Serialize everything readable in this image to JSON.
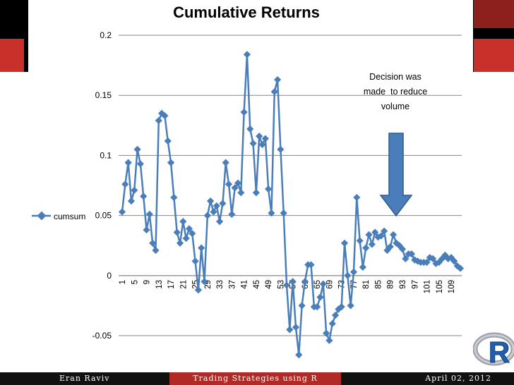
{
  "chart_data": {
    "type": "line",
    "title": "Cumulative Returns",
    "series": [
      {
        "name": "cumsum",
        "color": "#4a7ebb",
        "values": [
          0.053,
          0.076,
          0.094,
          0.062,
          0.071,
          0.105,
          0.093,
          0.066,
          0.038,
          0.051,
          0.027,
          0.021,
          0.129,
          0.135,
          0.133,
          0.112,
          0.094,
          0.065,
          0.036,
          0.027,
          0.045,
          0.031,
          0.039,
          0.035,
          0.012,
          -0.012,
          0.023,
          -0.005,
          0.05,
          0.062,
          0.053,
          0.058,
          0.045,
          0.06,
          0.094,
          0.076,
          0.051,
          0.073,
          0.077,
          0.069,
          0.136,
          0.184,
          0.122,
          0.11,
          0.069,
          0.116,
          0.109,
          0.114,
          0.072,
          0.052,
          0.153,
          0.163,
          0.105,
          0.052,
          -0.008,
          -0.045,
          -0.005,
          -0.043,
          -0.066,
          -0.025,
          -0.005,
          0.009,
          0.009,
          -0.026,
          -0.026,
          -0.018,
          -0.007,
          -0.048,
          -0.054,
          -0.04,
          -0.033,
          -0.028,
          -0.026,
          0.027,
          0.0,
          -0.025,
          0.003,
          0.065,
          0.029,
          0.007,
          0.023,
          0.034,
          0.026,
          0.036,
          0.032,
          0.033,
          0.037,
          0.021,
          0.024,
          0.034,
          0.027,
          0.025,
          0.022,
          0.014,
          0.018,
          0.018,
          0.013,
          0.012,
          0.011,
          0.011,
          0.011,
          0.015,
          0.014,
          0.01,
          0.011,
          0.014,
          0.017,
          0.014,
          0.015,
          0.012,
          0.008,
          0.006
        ]
      }
    ],
    "x_tick_labels": [
      "1",
      "5",
      "9",
      "13",
      "17",
      "21",
      "25",
      "29",
      "33",
      "37",
      "41",
      "45",
      "49",
      "53",
      "57",
      "61",
      "65",
      "69",
      "73",
      "77",
      "81",
      "85",
      "89",
      "93",
      "97",
      "101",
      "105",
      "109"
    ],
    "y_tick_labels": [
      "0.2",
      "0.15",
      "0.1",
      "0.05",
      "0",
      "-0.05"
    ],
    "ylim": [
      -0.05,
      0.2
    ],
    "grid": true,
    "legend_position": "left",
    "legend_label": "cumsum",
    "annotation": {
      "lines": [
        "Decision was",
        "made  to reduce",
        "volume"
      ],
      "arrow_color": "#4a7ebb",
      "arrow_direction": "down"
    }
  },
  "footer": {
    "author": "Eran Raviv",
    "talk_title": "Trading Strategies using R",
    "date": "April 02, 2012"
  },
  "logo": {
    "letter": "R"
  },
  "colors": {
    "band": "#000000",
    "accent_red": "#c8312a",
    "series_blue": "#4a7ebb"
  }
}
